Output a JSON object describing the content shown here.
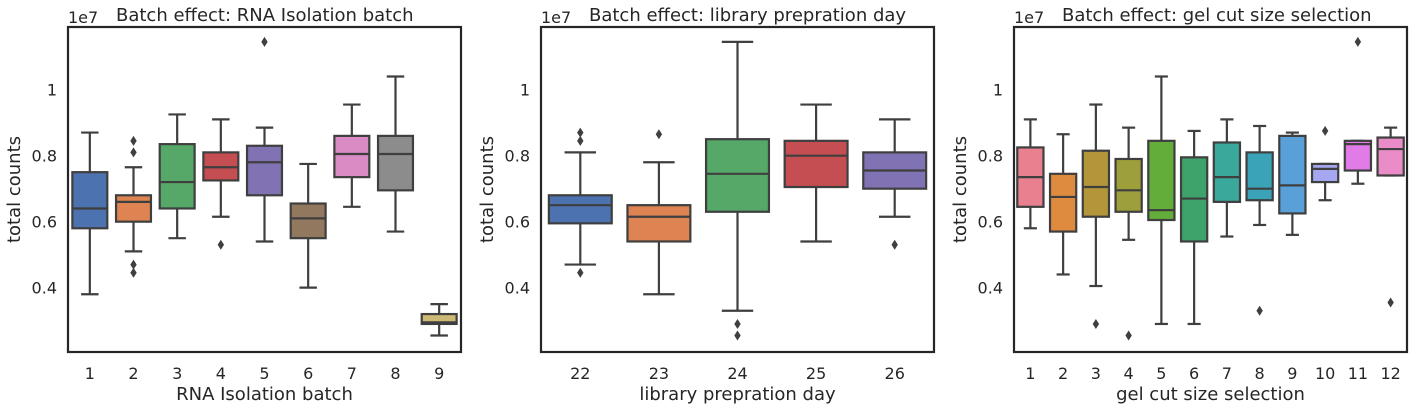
{
  "chart_data": [
    {
      "type": "box",
      "title": "Batch effect: RNA Isolation batch",
      "xlabel": "RNA Isolation batch",
      "ylabel": "total counts",
      "y_offset_label": "1e7",
      "y_unit_multiplier": 10000000,
      "ylim": [
        0.205,
        1.19
      ],
      "yticks": [
        0.4,
        0.6,
        0.8,
        1.0
      ],
      "categories": [
        "1",
        "2",
        "3",
        "4",
        "5",
        "6",
        "7",
        "8",
        "9"
      ],
      "boxes": [
        {
          "category": "1",
          "whisker_low": 0.38,
          "q1": 0.58,
          "median": 0.64,
          "q3": 0.75,
          "whisker_high": 0.87,
          "outliers": [],
          "color": "#4c72b0"
        },
        {
          "category": "2",
          "whisker_low": 0.51,
          "q1": 0.6,
          "median": 0.66,
          "q3": 0.68,
          "whisker_high": 0.765,
          "outliers": [
            0.445,
            0.47,
            0.81,
            0.845
          ],
          "color": "#dd8452"
        },
        {
          "category": "3",
          "whisker_low": 0.55,
          "q1": 0.64,
          "median": 0.72,
          "q3": 0.835,
          "whisker_high": 0.925,
          "outliers": [],
          "color": "#55a868"
        },
        {
          "category": "4",
          "whisker_low": 0.615,
          "q1": 0.725,
          "median": 0.765,
          "q3": 0.81,
          "whisker_high": 0.91,
          "outliers": [
            0.53
          ],
          "color": "#c44e52"
        },
        {
          "category": "5",
          "whisker_low": 0.54,
          "q1": 0.68,
          "median": 0.78,
          "q3": 0.83,
          "whisker_high": 0.885,
          "outliers": [
            1.145
          ],
          "color": "#8172b3"
        },
        {
          "category": "6",
          "whisker_low": 0.4,
          "q1": 0.55,
          "median": 0.61,
          "q3": 0.655,
          "whisker_high": 0.775,
          "outliers": [],
          "color": "#937860"
        },
        {
          "category": "7",
          "whisker_low": 0.645,
          "q1": 0.735,
          "median": 0.805,
          "q3": 0.86,
          "whisker_high": 0.955,
          "outliers": [],
          "color": "#da8bc3"
        },
        {
          "category": "8",
          "whisker_low": 0.57,
          "q1": 0.695,
          "median": 0.805,
          "q3": 0.86,
          "whisker_high": 1.04,
          "outliers": [],
          "color": "#8c8c8c"
        },
        {
          "category": "9",
          "whisker_low": 0.255,
          "q1": 0.29,
          "median": 0.295,
          "q3": 0.32,
          "whisker_high": 0.35,
          "outliers": [],
          "color": "#ccb974"
        }
      ]
    },
    {
      "type": "box",
      "title": "Batch effect: library prepration day",
      "xlabel": "library prepration day",
      "ylabel": "total counts",
      "y_offset_label": "1e7",
      "y_unit_multiplier": 10000000,
      "ylim": [
        0.205,
        1.19
      ],
      "yticks": [
        0.4,
        0.6,
        0.8,
        1.0
      ],
      "categories": [
        "22",
        "23",
        "24",
        "25",
        "26"
      ],
      "boxes": [
        {
          "category": "22",
          "whisker_low": 0.47,
          "q1": 0.595,
          "median": 0.65,
          "q3": 0.68,
          "whisker_high": 0.81,
          "outliers": [
            0.445,
            0.845,
            0.87
          ],
          "color": "#4c72b0"
        },
        {
          "category": "23",
          "whisker_low": 0.38,
          "q1": 0.54,
          "median": 0.615,
          "q3": 0.65,
          "whisker_high": 0.78,
          "outliers": [
            0.865
          ],
          "color": "#dd8452"
        },
        {
          "category": "24",
          "whisker_low": 0.33,
          "q1": 0.63,
          "median": 0.745,
          "q3": 0.85,
          "whisker_high": 1.145,
          "outliers": [
            0.255,
            0.29
          ],
          "color": "#55a868"
        },
        {
          "category": "25",
          "whisker_low": 0.54,
          "q1": 0.705,
          "median": 0.8,
          "q3": 0.845,
          "whisker_high": 0.955,
          "outliers": [],
          "color": "#c44e52"
        },
        {
          "category": "26",
          "whisker_low": 0.615,
          "q1": 0.7,
          "median": 0.755,
          "q3": 0.81,
          "whisker_high": 0.91,
          "outliers": [
            0.53
          ],
          "color": "#8172b3"
        }
      ]
    },
    {
      "type": "box",
      "title": "Batch effect: gel cut size selection",
      "xlabel": "gel cut size selection",
      "ylabel": "total counts",
      "y_offset_label": "1e7",
      "y_unit_multiplier": 10000000,
      "ylim": [
        0.205,
        1.19
      ],
      "yticks": [
        0.4,
        0.6,
        0.8,
        1.0
      ],
      "categories": [
        "1",
        "2",
        "3",
        "4",
        "5",
        "6",
        "7",
        "8",
        "9",
        "10",
        "11",
        "12"
      ],
      "boxes": [
        {
          "category": "1",
          "whisker_low": 0.58,
          "q1": 0.645,
          "median": 0.735,
          "q3": 0.825,
          "whisker_high": 0.91,
          "outliers": [],
          "color": "#e8808f"
        },
        {
          "category": "2",
          "whisker_low": 0.44,
          "q1": 0.57,
          "median": 0.675,
          "q3": 0.745,
          "whisker_high": 0.865,
          "outliers": [],
          "color": "#df8b3f"
        },
        {
          "category": "3",
          "whisker_low": 0.405,
          "q1": 0.615,
          "median": 0.705,
          "q3": 0.815,
          "whisker_high": 0.955,
          "outliers": [
            0.29
          ],
          "color": "#b4963a"
        },
        {
          "category": "4",
          "whisker_low": 0.545,
          "q1": 0.63,
          "median": 0.695,
          "q3": 0.79,
          "whisker_high": 0.885,
          "outliers": [
            0.255
          ],
          "color": "#9da03a"
        },
        {
          "category": "5",
          "whisker_low": 0.29,
          "q1": 0.605,
          "median": 0.635,
          "q3": 0.845,
          "whisker_high": 1.04,
          "outliers": [],
          "color": "#63ad3a"
        },
        {
          "category": "6",
          "whisker_low": 0.29,
          "q1": 0.54,
          "median": 0.67,
          "q3": 0.795,
          "whisker_high": 0.875,
          "outliers": [],
          "color": "#3ea36b"
        },
        {
          "category": "7",
          "whisker_low": 0.555,
          "q1": 0.66,
          "median": 0.735,
          "q3": 0.84,
          "whisker_high": 0.91,
          "outliers": [],
          "color": "#3aa99b"
        },
        {
          "category": "8",
          "whisker_low": 0.59,
          "q1": 0.665,
          "median": 0.7,
          "q3": 0.81,
          "whisker_high": 0.89,
          "outliers": [
            0.33
          ],
          "color": "#3ba3b8"
        },
        {
          "category": "9",
          "whisker_low": 0.56,
          "q1": 0.625,
          "median": 0.71,
          "q3": 0.86,
          "whisker_high": 0.87,
          "outliers": [],
          "color": "#5aa0d8"
        },
        {
          "category": "10",
          "whisker_low": 0.665,
          "q1": 0.72,
          "median": 0.76,
          "q3": 0.775,
          "whisker_high": 0.775,
          "outliers": [
            0.875
          ],
          "color": "#a5a8f0"
        },
        {
          "category": "11",
          "whisker_low": 0.715,
          "q1": 0.755,
          "median": 0.835,
          "q3": 0.845,
          "whisker_high": 0.845,
          "outliers": [
            1.145
          ],
          "color": "#e07be8"
        },
        {
          "category": "12",
          "whisker_low": 0.74,
          "q1": 0.74,
          "median": 0.82,
          "q3": 0.855,
          "whisker_high": 0.885,
          "outliers": [
            0.355
          ],
          "color": "#ea8cc7"
        }
      ]
    }
  ],
  "style": {
    "edge_color": "#3f3f3f",
    "spine_color": "#262626",
    "background": "#ffffff"
  }
}
